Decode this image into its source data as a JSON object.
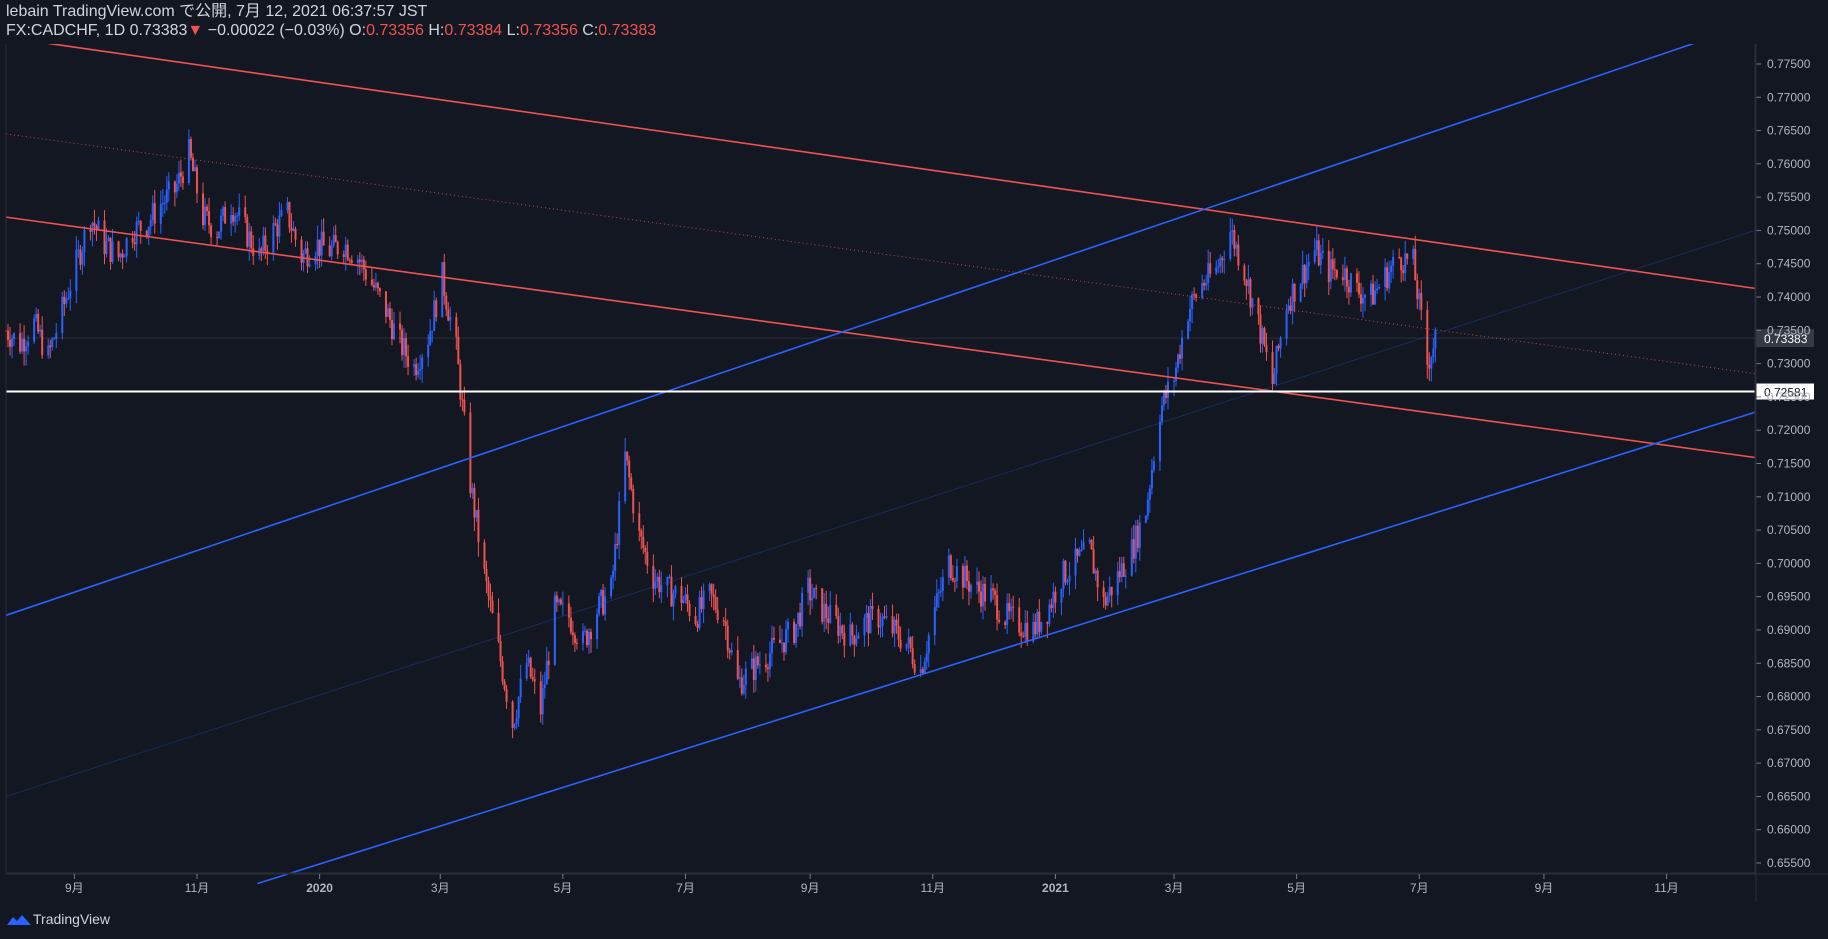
{
  "header": {
    "publish_line": "lebain TradingView.com で公開, 7月 12, 2021 06:37:57 JST",
    "symbol": "FX:CADCHF, 1D",
    "last_price": "0.73383",
    "change_arrow": "▼",
    "change": "−0.00022 (−0.03%)",
    "open_label": "O:",
    "open": "0.73356",
    "high_label": "H:",
    "high": "0.73384",
    "low_label": "L:",
    "low": "0.73356",
    "close_label": "C:",
    "close": "0.73383"
  },
  "footer": {
    "brand": "TradingView",
    "logo_icon": "tradingview-logo-icon"
  },
  "colors": {
    "background": "#131722",
    "up": "#2962ff",
    "down": "#ef5350",
    "channel_red": "#ef5350",
    "channel_blue": "#2962ff",
    "level": "#ffffff",
    "text": "#d1d4dc"
  },
  "chart_data": {
    "type": "candlestick",
    "symbol": "FX:CADCHF",
    "interval": "1D",
    "x_range": [
      "2019-07-29",
      "2021-12-15"
    ],
    "ylim": [
      0.6535,
      0.778
    ],
    "y_ticks": [
      "0.65500",
      "0.66000",
      "0.66500",
      "0.67000",
      "0.67500",
      "0.68000",
      "0.68500",
      "0.69000",
      "0.69500",
      "0.70000",
      "0.70500",
      "0.71000",
      "0.71500",
      "0.72000",
      "0.72500",
      "0.73000",
      "0.73500",
      "0.74000",
      "0.74500",
      "0.75000",
      "0.75500",
      "0.76000",
      "0.76500",
      "0.77000",
      "0.77500"
    ],
    "x_ticks": [
      {
        "date": "2019-09-01",
        "label": "9月"
      },
      {
        "date": "2019-11-01",
        "label": "11月"
      },
      {
        "date": "2020-01-01",
        "label": "2020"
      },
      {
        "date": "2020-03-01",
        "label": "3月"
      },
      {
        "date": "2020-05-01",
        "label": "5月"
      },
      {
        "date": "2020-07-01",
        "label": "7月"
      },
      {
        "date": "2020-09-01",
        "label": "9月"
      },
      {
        "date": "2020-11-01",
        "label": "11月"
      },
      {
        "date": "2021-01-01",
        "label": "2021"
      },
      {
        "date": "2021-03-01",
        "label": "3月"
      },
      {
        "date": "2021-05-01",
        "label": "5月"
      },
      {
        "date": "2021-07-01",
        "label": "7月"
      },
      {
        "date": "2021-09-01",
        "label": "9月"
      },
      {
        "date": "2021-11-01",
        "label": "11月"
      }
    ],
    "price_path": [
      [
        "2019-07-29",
        0.735
      ],
      [
        "2019-08-05",
        0.733
      ],
      [
        "2019-08-12",
        0.736
      ],
      [
        "2019-08-19",
        0.731
      ],
      [
        "2019-08-26",
        0.738
      ],
      [
        "2019-09-02",
        0.745
      ],
      [
        "2019-09-09",
        0.752
      ],
      [
        "2019-09-16",
        0.748
      ],
      [
        "2019-09-23",
        0.746
      ],
      [
        "2019-09-30",
        0.75
      ],
      [
        "2019-10-07",
        0.751
      ],
      [
        "2019-10-14",
        0.754
      ],
      [
        "2019-10-21",
        0.756
      ],
      [
        "2019-10-28",
        0.7615
      ],
      [
        "2019-11-04",
        0.752
      ],
      [
        "2019-11-11",
        0.75
      ],
      [
        "2019-11-18",
        0.754
      ],
      [
        "2019-11-25",
        0.75
      ],
      [
        "2019-12-02",
        0.746
      ],
      [
        "2019-12-09",
        0.75
      ],
      [
        "2019-12-16",
        0.7525
      ],
      [
        "2019-12-23",
        0.746
      ],
      [
        "2019-12-30",
        0.748
      ],
      [
        "2020-01-06",
        0.747
      ],
      [
        "2020-01-13",
        0.748
      ],
      [
        "2020-01-20",
        0.746
      ],
      [
        "2020-01-27",
        0.742
      ],
      [
        "2020-02-03",
        0.738
      ],
      [
        "2020-02-10",
        0.733
      ],
      [
        "2020-02-17",
        0.7295
      ],
      [
        "2020-02-24",
        0.734
      ],
      [
        "2020-03-02",
        0.743
      ],
      [
        "2020-03-09",
        0.732
      ],
      [
        "2020-03-16",
        0.712
      ],
      [
        "2020-03-23",
        0.698
      ],
      [
        "2020-03-30",
        0.687
      ],
      [
        "2020-04-06",
        0.676
      ],
      [
        "2020-04-13",
        0.685
      ],
      [
        "2020-04-20",
        0.678
      ],
      [
        "2020-04-27",
        0.693
      ],
      [
        "2020-05-04",
        0.692
      ],
      [
        "2020-05-11",
        0.688
      ],
      [
        "2020-05-18",
        0.693
      ],
      [
        "2020-05-25",
        0.696
      ],
      [
        "2020-06-01",
        0.716
      ],
      [
        "2020-06-08",
        0.704
      ],
      [
        "2020-06-15",
        0.698
      ],
      [
        "2020-06-22",
        0.696
      ],
      [
        "2020-06-29",
        0.695
      ],
      [
        "2020-07-06",
        0.692
      ],
      [
        "2020-07-13",
        0.695
      ],
      [
        "2020-07-20",
        0.692
      ],
      [
        "2020-07-27",
        0.682
      ],
      [
        "2020-08-03",
        0.684
      ],
      [
        "2020-08-10",
        0.686
      ],
      [
        "2020-08-17",
        0.688
      ],
      [
        "2020-08-24",
        0.69
      ],
      [
        "2020-08-31",
        0.696
      ],
      [
        "2020-09-07",
        0.693
      ],
      [
        "2020-09-14",
        0.691
      ],
      [
        "2020-09-21",
        0.689
      ],
      [
        "2020-09-28",
        0.691
      ],
      [
        "2020-10-05",
        0.692
      ],
      [
        "2020-10-12",
        0.69
      ],
      [
        "2020-10-19",
        0.688
      ],
      [
        "2020-10-26",
        0.684
      ],
      [
        "2020-11-02",
        0.693
      ],
      [
        "2020-11-09",
        0.7
      ],
      [
        "2020-11-16",
        0.698
      ],
      [
        "2020-11-23",
        0.696
      ],
      [
        "2020-11-30",
        0.695
      ],
      [
        "2020-12-07",
        0.692
      ],
      [
        "2020-12-14",
        0.691
      ],
      [
        "2020-12-21",
        0.69
      ],
      [
        "2020-12-28",
        0.693
      ],
      [
        "2021-01-04",
        0.698
      ],
      [
        "2021-01-11",
        0.7
      ],
      [
        "2021-01-18",
        0.702
      ],
      [
        "2021-01-25",
        0.694
      ],
      [
        "2021-02-01",
        0.698
      ],
      [
        "2021-02-08",
        0.702
      ],
      [
        "2021-02-15",
        0.708
      ],
      [
        "2021-02-22",
        0.723
      ],
      [
        "2021-03-01",
        0.728
      ],
      [
        "2021-03-08",
        0.738
      ],
      [
        "2021-03-15",
        0.742
      ],
      [
        "2021-03-22",
        0.744
      ],
      [
        "2021-03-29",
        0.75
      ],
      [
        "2021-04-05",
        0.744
      ],
      [
        "2021-04-12",
        0.736
      ],
      [
        "2021-04-19",
        0.727
      ],
      [
        "2021-04-26",
        0.739
      ],
      [
        "2021-05-03",
        0.743
      ],
      [
        "2021-05-10",
        0.747
      ],
      [
        "2021-05-17",
        0.744
      ],
      [
        "2021-05-24",
        0.744
      ],
      [
        "2021-05-31",
        0.741
      ],
      [
        "2021-06-07",
        0.74
      ],
      [
        "2021-06-14",
        0.743
      ],
      [
        "2021-06-21",
        0.746
      ],
      [
        "2021-06-28",
        0.745
      ],
      [
        "2021-07-05",
        0.73
      ],
      [
        "2021-07-09",
        0.7338
      ]
    ],
    "trendlines": [
      {
        "color": "#ef5350",
        "style": "solid",
        "from": [
          "2019-07-29",
          0.779
        ],
        "to": [
          "2021-12-15",
          0.7413
        ]
      },
      {
        "color": "#ef5350",
        "style": "solid",
        "from": [
          "2019-07-29",
          0.752
        ],
        "to": [
          "2021-12-15",
          0.7159
        ]
      },
      {
        "color": "#ef5350",
        "style": "dotted",
        "from": [
          "2019-07-29",
          0.7645
        ],
        "to": [
          "2021-12-15",
          0.7285
        ]
      },
      {
        "color": "#2962ff",
        "style": "solid",
        "from": [
          "2019-07-29",
          0.6922
        ],
        "to": [
          "2021-12-15",
          0.7812
        ]
      },
      {
        "color": "#2962ff",
        "style": "solid",
        "from": [
          "2019-12-01",
          0.6519
        ],
        "to": [
          "2021-12-15",
          0.7227
        ]
      },
      {
        "color": "#2962ff",
        "style": "faint",
        "from": [
          "2019-07-29",
          0.665
        ],
        "to": [
          "2021-12-15",
          0.75
        ]
      }
    ],
    "horizontal_level": {
      "price": 0.72581,
      "label": "0.72581"
    },
    "current_price": {
      "price": 0.73383,
      "label": "0.73383"
    }
  }
}
